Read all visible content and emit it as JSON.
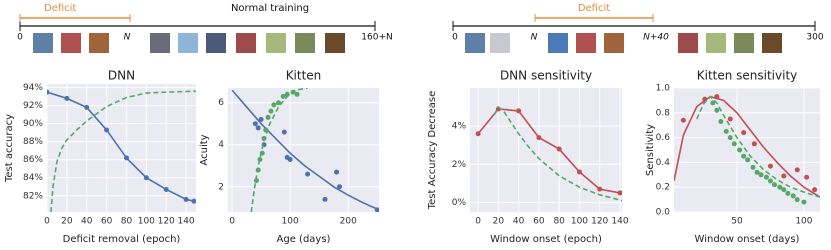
{
  "timelines": [
    {
      "deficit": "Deficit",
      "phase": "Normal training",
      "ticks": [
        "0",
        "N",
        "160+N"
      ]
    },
    {
      "deficit": "Deficit",
      "ticks": [
        "0",
        "N",
        "N+40",
        "300"
      ]
    }
  ],
  "chart_data": [
    {
      "type": "line",
      "title": "DNN",
      "xlabel": "Deficit removal (epoch)",
      "ylabel": "Test accuracy",
      "xlim": [
        0,
        150
      ],
      "ylim": [
        80.2,
        94.4
      ],
      "xticks": [
        0,
        20,
        40,
        60,
        80,
        100,
        120,
        140
      ],
      "yticks": [
        {
          "value": 82,
          "label": "82%"
        },
        {
          "value": 84,
          "label": "84%"
        },
        {
          "value": 86,
          "label": "86%"
        },
        {
          "value": 88,
          "label": "88%"
        },
        {
          "value": 90,
          "label": "90%"
        },
        {
          "value": 92,
          "label": "92%"
        },
        {
          "value": 94,
          "label": "94%"
        }
      ],
      "grid": true,
      "series": [
        {
          "color": "#4c72b0",
          "style": "line-markers",
          "x": [
            0,
            20,
            40,
            60,
            80,
            100,
            120,
            140,
            148
          ],
          "values": [
            93.5,
            92.8,
            91.8,
            89.3,
            86.2,
            84.0,
            82.7,
            81.6,
            81.4
          ]
        },
        {
          "color": "#55a868",
          "style": "dashed",
          "x": [
            4,
            6,
            10,
            15,
            20,
            30,
            40,
            50,
            60,
            80,
            100,
            120,
            150
          ],
          "values": [
            80.2,
            83,
            85.8,
            87.3,
            88.2,
            89.3,
            90.3,
            91.1,
            91.9,
            92.9,
            93.4,
            93.5,
            93.6
          ]
        }
      ]
    },
    {
      "type": "line",
      "title": "Kitten",
      "xlabel": "Age (days)",
      "ylabel": "Acuity",
      "xlim": [
        -7,
        253
      ],
      "ylim": [
        0.8,
        6.7
      ],
      "xticks": [
        0,
        100,
        200
      ],
      "yticks": [
        2,
        4,
        6
      ],
      "grid": true,
      "series": [
        {
          "color": "#4c72b0",
          "style": "solid",
          "x": [
            0,
            25,
            50,
            75,
            100,
            125,
            150,
            175,
            200,
            225,
            253
          ],
          "values": [
            6.6,
            5.8,
            5.0,
            4.3,
            3.6,
            3.0,
            2.5,
            2.0,
            1.6,
            1.25,
            0.9
          ]
        },
        {
          "color": "#4c72b0",
          "style": "markers",
          "x": [
            40,
            45,
            50,
            55,
            90,
            95,
            100,
            130,
            160,
            180,
            185,
            250
          ],
          "values": [
            5.0,
            4.8,
            5.2,
            4.0,
            4.6,
            3.4,
            3.3,
            2.6,
            1.4,
            2.7,
            2.0,
            0.9
          ]
        },
        {
          "color": "#55a868",
          "style": "dashed",
          "x": [
            33,
            38,
            45,
            55,
            65,
            80,
            95,
            110,
            130
          ],
          "values": [
            0.8,
            1.8,
            3.0,
            4.2,
            5.0,
            5.8,
            6.3,
            6.6,
            6.7
          ]
        },
        {
          "color": "#55a868",
          "style": "markers",
          "x": [
            42,
            45,
            48,
            52,
            55,
            58,
            62,
            67,
            72,
            80,
            88,
            95,
            105,
            112
          ],
          "values": [
            2.3,
            2.8,
            3.3,
            3.6,
            4.3,
            4.7,
            5.3,
            5.6,
            5.9,
            6.0,
            6.3,
            6.4,
            6.5,
            6.4
          ]
        }
      ]
    },
    {
      "type": "line",
      "title": "DNN sensitivity",
      "xlabel": "Window onset (epoch)",
      "ylabel": "Test Accuracy Decrease",
      "xlim": [
        -8,
        142
      ],
      "ylim": [
        -0.5,
        6.0
      ],
      "xticks": [
        0,
        20,
        40,
        60,
        80,
        100,
        120,
        140
      ],
      "yticks": [
        {
          "value": 0,
          "label": "0%"
        },
        {
          "value": 2,
          "label": "2%"
        },
        {
          "value": 4,
          "label": "4%"
        }
      ],
      "grid": true,
      "series": [
        {
          "color": "#c44e52",
          "style": "line-markers",
          "x": [
            0,
            20,
            40,
            60,
            80,
            100,
            120,
            140
          ],
          "values": [
            3.6,
            4.9,
            4.8,
            3.4,
            2.8,
            1.6,
            0.7,
            0.5
          ]
        },
        {
          "color": "#55a868",
          "style": "dashed",
          "x": [
            16,
            20,
            25,
            30,
            40,
            50,
            60,
            80,
            100,
            120,
            142
          ],
          "values": [
            4.6,
            5.0,
            4.8,
            4.4,
            3.6,
            2.9,
            2.3,
            1.4,
            0.8,
            0.4,
            0.1
          ]
        }
      ]
    },
    {
      "type": "line",
      "title": "Kitten sensitivity",
      "xlabel": "Window onset (days)",
      "ylabel": "Sensitivity",
      "xlim": [
        3,
        112
      ],
      "ylim": [
        0,
        1
      ],
      "xticks": [
        50,
        100
      ],
      "yticks": [
        {
          "value": 0,
          "label": "0.0"
        },
        {
          "value": 0.2,
          "label": "0.2"
        },
        {
          "value": 0.4,
          "label": "0.4"
        },
        {
          "value": 0.6,
          "label": "0.6"
        },
        {
          "value": 0.8,
          "label": "0.8"
        },
        {
          "value": 1,
          "label": "1.0"
        }
      ],
      "grid": true,
      "series": [
        {
          "color": "#c44e52",
          "style": "solid",
          "x": [
            3,
            10,
            20,
            30,
            40,
            50,
            60,
            70,
            80,
            90,
            100,
            112
          ],
          "values": [
            0.25,
            0.62,
            0.85,
            0.93,
            0.9,
            0.8,
            0.66,
            0.52,
            0.4,
            0.29,
            0.2,
            0.12
          ]
        },
        {
          "color": "#c44e52",
          "style": "markers",
          "x": [
            10,
            26,
            35,
            45,
            55,
            63,
            75,
            85,
            95,
            102,
            108
          ],
          "values": [
            0.74,
            0.91,
            0.93,
            0.75,
            0.64,
            0.55,
            0.37,
            0.29,
            0.34,
            0.28,
            0.18
          ]
        },
        {
          "color": "#55a868",
          "style": "dashed",
          "x": [
            20,
            25,
            30,
            35,
            40,
            50,
            60,
            70,
            80,
            90,
            100,
            112
          ],
          "values": [
            0.75,
            0.87,
            0.93,
            0.88,
            0.78,
            0.6,
            0.45,
            0.34,
            0.26,
            0.2,
            0.16,
            0.12
          ]
        },
        {
          "color": "#55a868",
          "style": "markers",
          "x": [
            32,
            35,
            38,
            42,
            45,
            48,
            52,
            55,
            58,
            62,
            65,
            68,
            72,
            75,
            78,
            82,
            85,
            88,
            92,
            95,
            100
          ],
          "values": [
            0.88,
            0.82,
            0.73,
            0.65,
            0.6,
            0.55,
            0.5,
            0.45,
            0.42,
            0.36,
            0.32,
            0.3,
            0.28,
            0.25,
            0.22,
            0.2,
            0.18,
            0.15,
            0.13,
            0.1,
            0.08
          ]
        }
      ]
    }
  ]
}
